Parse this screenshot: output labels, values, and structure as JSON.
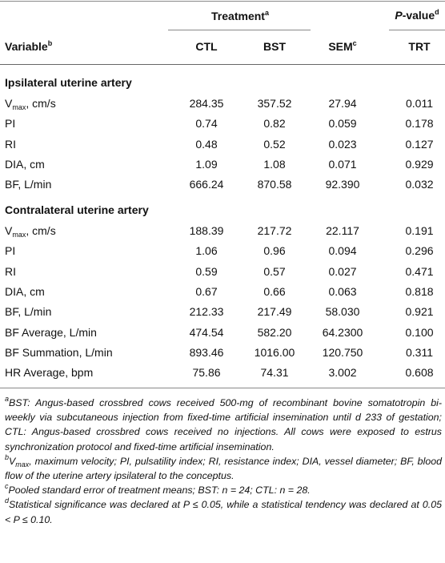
{
  "header": {
    "treatment": {
      "text": "Treatment",
      "sup": "a"
    },
    "p_value": {
      "italic": "P",
      "text": "-value",
      "sup": "d"
    }
  },
  "columns": [
    {
      "text": "Variable",
      "sup": "b"
    },
    {
      "text": "CTL"
    },
    {
      "text": "BST"
    },
    {
      "text": "SEM",
      "sup": "c"
    },
    {
      "text": "TRT"
    }
  ],
  "sections": [
    {
      "title": "Ipsilateral uterine artery",
      "rows": [
        {
          "label": {
            "text": "V",
            "sub": "max",
            "rest": ", cm/s"
          },
          "cells": [
            "284.35",
            "357.52",
            "27.94",
            "0.011"
          ]
        },
        {
          "label": {
            "text": "PI"
          },
          "cells": [
            "0.74",
            "0.82",
            "0.059",
            "0.178"
          ]
        },
        {
          "label": {
            "text": "RI"
          },
          "cells": [
            "0.48",
            "0.52",
            "0.023",
            "0.127"
          ]
        },
        {
          "label": {
            "text": "DIA, cm"
          },
          "cells": [
            "1.09",
            "1.08",
            "0.071",
            "0.929"
          ]
        },
        {
          "label": {
            "text": "BF, L/min"
          },
          "cells": [
            "666.24",
            "870.58",
            "92.390",
            "0.032"
          ]
        }
      ]
    },
    {
      "title": "Contralateral uterine artery",
      "rows": [
        {
          "label": {
            "text": "V",
            "sub": "max",
            "rest": ", cm/s"
          },
          "cells": [
            "188.39",
            "217.72",
            "22.117",
            "0.191"
          ]
        },
        {
          "label": {
            "text": "PI"
          },
          "cells": [
            "1.06",
            "0.96",
            "0.094",
            "0.296"
          ]
        },
        {
          "label": {
            "text": "RI"
          },
          "cells": [
            "0.59",
            "0.57",
            "0.027",
            "0.471"
          ]
        },
        {
          "label": {
            "text": "DIA, cm"
          },
          "cells": [
            "0.67",
            "0.66",
            "0.063",
            "0.818"
          ]
        },
        {
          "label": {
            "text": "BF, L/min"
          },
          "cells": [
            "212.33",
            "217.49",
            "58.030",
            "0.921"
          ]
        },
        {
          "label": {
            "text": "BF Average, L/min"
          },
          "cells": [
            "474.54",
            "582.20",
            "64.2300",
            "0.100"
          ]
        },
        {
          "label": {
            "text": "BF Summation, L/min"
          },
          "cells": [
            "893.46",
            "1016.00",
            "120.750",
            "0.311"
          ]
        },
        {
          "label": {
            "text": "HR Average, bpm"
          },
          "cells": [
            "75.86",
            "74.31",
            "3.002",
            "0.608"
          ]
        }
      ]
    }
  ],
  "footnotes": [
    {
      "sup": "a",
      "text": "BST: Angus-based crossbred cows received 500-mg of recombinant bovine somatotropin bi-weekly via subcutaneous injection from fixed-time artificial insemination until d 233 of gestation; CTL: Angus-based crossbred cows received no injections. All cows were exposed to estrus synchronization protocol and fixed-time artificial insemination."
    },
    {
      "sup": "b",
      "text": "V",
      "sub": "max",
      "rest": ", maximum velocity; PI, pulsatility index; RI, resistance index; DIA, vessel diameter; BF, blood flow of the uterine artery ipsilateral to the conceptus."
    },
    {
      "sup": "c",
      "text": "Pooled standard error of treatment means; BST: n = 24; CTL: n = 28."
    },
    {
      "sup": "d",
      "text": "Statistical significance was declared at P ≤ 0.05, while a statistical tendency was declared at 0.05 < P ≤ 0.10."
    }
  ]
}
